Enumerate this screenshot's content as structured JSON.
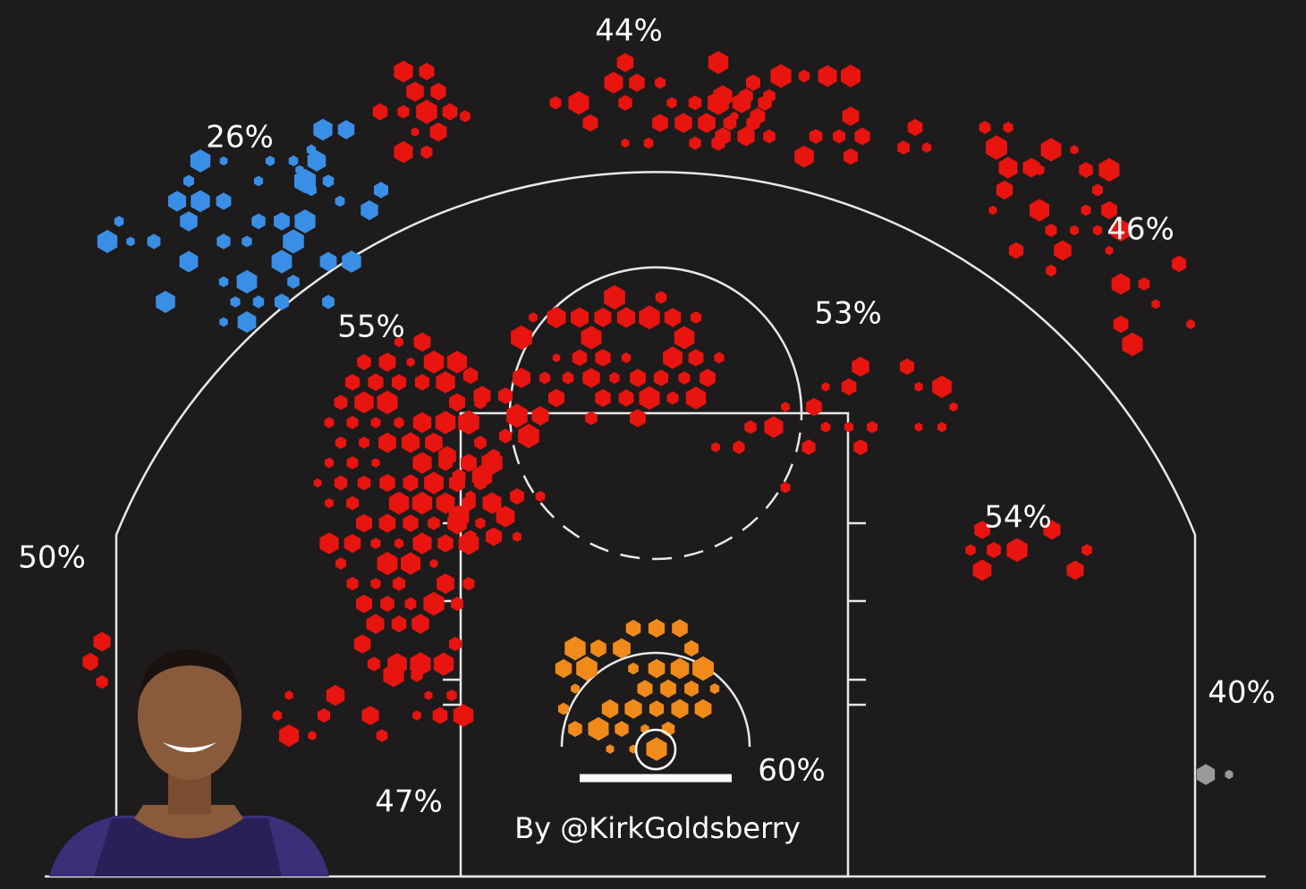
{
  "zones": [
    {
      "label": "44%",
      "color": "#e8140f"
    },
    {
      "label": "26%",
      "color": "#3a8ee6"
    },
    {
      "label": "46%",
      "color": "#e8140f"
    },
    {
      "label": "55%",
      "color": "#e8140f"
    },
    {
      "label": "53%",
      "color": "#e8140f"
    },
    {
      "label": "50%",
      "color": "#e8140f"
    },
    {
      "label": "54%",
      "color": "#e8140f"
    },
    {
      "label": "40%",
      "color": "#9a9a9a"
    },
    {
      "label": "47%",
      "color": "#e8140f"
    },
    {
      "label": "60%",
      "color": "#f08a1a"
    }
  ],
  "credit": "By @KirkGoldsberry"
}
